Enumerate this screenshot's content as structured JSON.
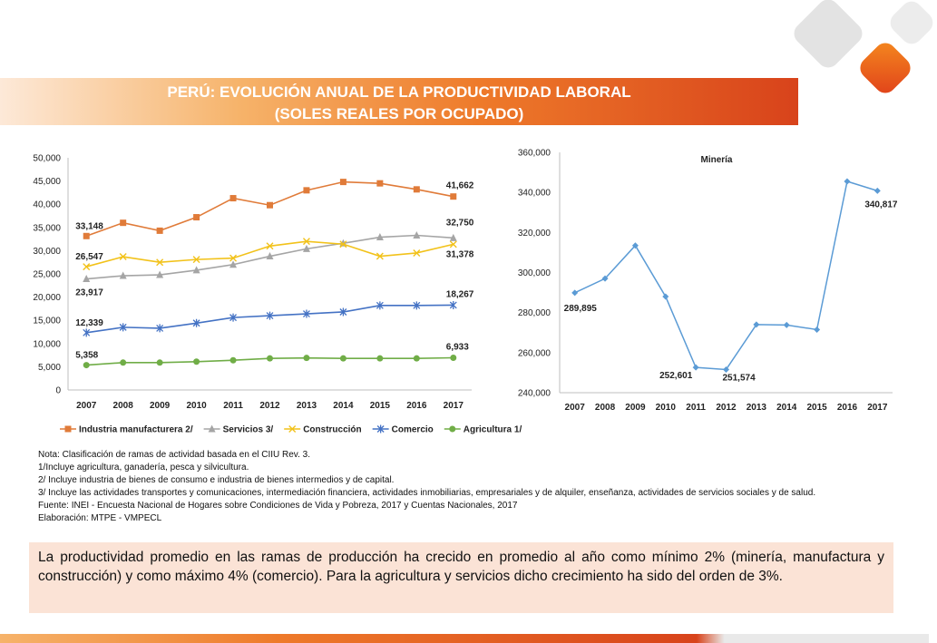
{
  "header": {
    "title_line1": "PERÚ: EVOLUCIÓN ANUAL DE LA PRODUCTIVIDAD LABORAL",
    "title_line2": "(SOLES REALES POR OCUPADO)"
  },
  "chart_data": [
    {
      "type": "line",
      "title": "",
      "x": [
        "2007",
        "2008",
        "2009",
        "2010",
        "2011",
        "2012",
        "2013",
        "2014",
        "2015",
        "2016",
        "2017"
      ],
      "ylim": [
        0,
        50000
      ],
      "yticks": [
        "0",
        "5,000",
        "10,000",
        "15,000",
        "20,000",
        "25,000",
        "30,000",
        "35,000",
        "40,000",
        "45,000",
        "50,000"
      ],
      "grid": false,
      "legend_position": "bottom",
      "series": [
        {
          "name": "Industria manufacturera 2/",
          "color": "#e07b39",
          "marker": "square",
          "values": [
            33148,
            36000,
            34300,
            37200,
            41300,
            39800,
            43000,
            44800,
            44500,
            43200,
            41662
          ],
          "labels": {
            "first": "33,148",
            "last": "41,662"
          }
        },
        {
          "name": "Servicios 3/",
          "color": "#a5a5a5",
          "marker": "triangle",
          "values": [
            23917,
            24600,
            24800,
            25800,
            27000,
            28800,
            30400,
            31600,
            32900,
            33300,
            32750
          ],
          "labels": {
            "first": "23,917",
            "last": "32,750"
          }
        },
        {
          "name": "Construcción",
          "color": "#f2c21a",
          "marker": "x",
          "values": [
            26547,
            28700,
            27500,
            28100,
            28400,
            31000,
            32000,
            31400,
            28800,
            29500,
            31378
          ],
          "labels": {
            "first": "26,547",
            "last": "31,378"
          }
        },
        {
          "name": "Comercio",
          "color": "#4472c4",
          "marker": "star",
          "values": [
            12339,
            13500,
            13300,
            14400,
            15600,
            16000,
            16400,
            16800,
            18200,
            18200,
            18267
          ],
          "labels": {
            "first": "12,339",
            "last": "18,267"
          }
        },
        {
          "name": "Agricultura 1/",
          "color": "#70ad47",
          "marker": "circle",
          "values": [
            5358,
            5900,
            5900,
            6100,
            6400,
            6800,
            6900,
            6800,
            6800,
            6800,
            6933
          ],
          "labels": {
            "first": "5,358",
            "last": "6,933"
          }
        }
      ]
    },
    {
      "type": "line",
      "title": "Minería",
      "x": [
        "2007",
        "2008",
        "2009",
        "2010",
        "2011",
        "2012",
        "2013",
        "2014",
        "2015",
        "2016",
        "2017"
      ],
      "ylim": [
        240000,
        360000
      ],
      "yticks": [
        "240,000",
        "260,000",
        "280,000",
        "300,000",
        "320,000",
        "340,000",
        "360,000"
      ],
      "grid": false,
      "series": [
        {
          "name": "Minería",
          "color": "#5b9bd5",
          "marker": "diamond",
          "values": [
            289895,
            297000,
            313500,
            288000,
            252601,
            251574,
            274000,
            273800,
            271500,
            345500,
            340817
          ],
          "labels": {
            "0": "289,895",
            "4": "252,601",
            "5": "251,574",
            "10": "340,817"
          }
        }
      ]
    }
  ],
  "notes": [
    "Nota: Clasificación de ramas de actividad basada en el CIIU Rev. 3.",
    "1/Incluye agricultura, ganadería, pesca y silvicultura.",
    "2/ Incluye industria de bienes de consumo e industria de bienes intermedios y de capital.",
    "3/ Incluye las actividades transportes y comunicaciones, intermediación financiera, actividades inmobiliarias, empresariales y de alquiler, enseñanza, actividades de servicios sociales y de salud.",
    "Fuente: INEI - Encuesta Nacional de Hogares sobre Condiciones de Vida y Pobreza, 2017 y Cuentas Nacionales, 2017",
    "Elaboración: MTPE - VMPECL"
  ],
  "summary": "La productividad promedio en las ramas de producción ha crecido en promedio al año como mínimo 2% (minería, manufactura y construcción) y como máximo 4% (comercio). Para la agricultura y servicios dicho crecimiento ha sido del orden de 3%."
}
